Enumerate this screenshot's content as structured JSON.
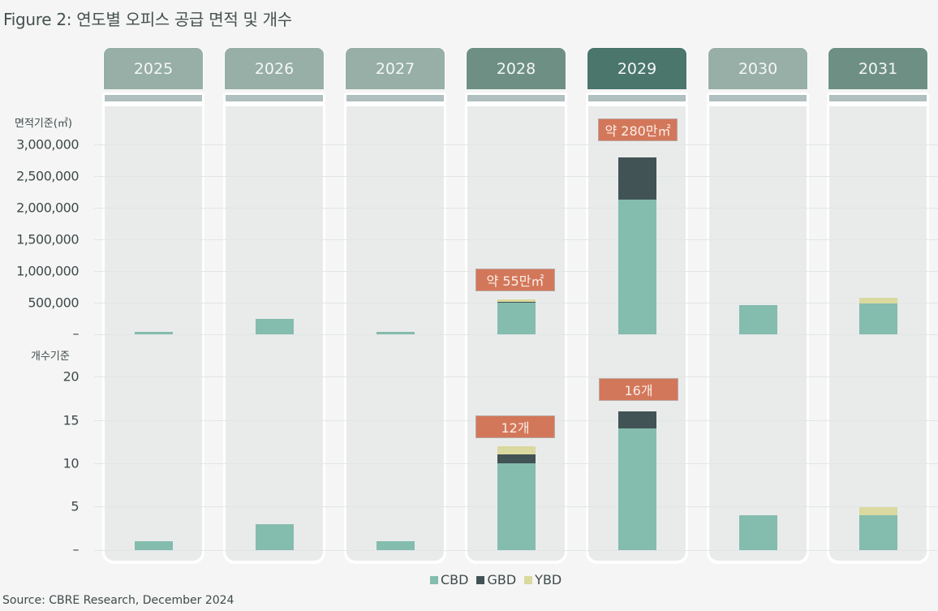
{
  "title": "Figure 2: 연도별 오피스 공급 면적 및 개수",
  "source": "Source: CBRE Research, December 2024",
  "colors": {
    "CBD": "#84bcae",
    "GBD": "#425355",
    "YBD": "#dad99f",
    "callout": "#d3775a",
    "header_light": "#97afa7",
    "header_mid": "#6e9084",
    "header_dark": "#4a766b",
    "panel": "#e9ebea"
  },
  "area_axis": {
    "label": "면적기준(㎡)",
    "ticks": [
      "3,000,000",
      "2,500,000",
      "2,000,000",
      "1,500,000",
      "1,000,000",
      "500,000",
      "–"
    ]
  },
  "count_axis": {
    "label": "개수기준",
    "ticks": [
      "20",
      "15",
      "10",
      "5",
      "–"
    ]
  },
  "years": [
    {
      "label": "2025",
      "header_color": "#97afa7"
    },
    {
      "label": "2026",
      "header_color": "#97afa7"
    },
    {
      "label": "2027",
      "header_color": "#97afa7"
    },
    {
      "label": "2028",
      "header_color": "#6e9084"
    },
    {
      "label": "2029",
      "header_color": "#4a766b"
    },
    {
      "label": "2030",
      "header_color": "#97afa7"
    },
    {
      "label": "2031",
      "header_color": "#6e9084"
    }
  ],
  "callouts": {
    "area_2028": "약 55만㎡",
    "area_2029": "약 280만㎡",
    "count_2028": "12개",
    "count_2029": "16개"
  },
  "legend": [
    {
      "label": "CBD",
      "color": "#84bcae"
    },
    {
      "label": "GBD",
      "color": "#425355"
    },
    {
      "label": "YBD",
      "color": "#dad99f"
    }
  ],
  "chart_data": [
    {
      "type": "bar",
      "stacked": true,
      "title": "연도별 오피스 공급 면적",
      "ylabel": "면적기준(㎡)",
      "categories": [
        "2025",
        "2026",
        "2027",
        "2028",
        "2029",
        "2030",
        "2031"
      ],
      "series": [
        {
          "name": "CBD",
          "values": [
            40000,
            245000,
            35000,
            500000,
            2130000,
            460000,
            490000
          ]
        },
        {
          "name": "GBD",
          "values": [
            0,
            0,
            0,
            15000,
            670000,
            0,
            0
          ]
        },
        {
          "name": "YBD",
          "values": [
            0,
            0,
            0,
            35000,
            0,
            0,
            90000
          ]
        }
      ],
      "ylim": [
        0,
        3000000
      ],
      "yticks": [
        0,
        500000,
        1000000,
        1500000,
        2000000,
        2500000,
        3000000
      ],
      "annotations": [
        {
          "category": "2028",
          "text": "약 55만㎡"
        },
        {
          "category": "2029",
          "text": "약 280만㎡"
        }
      ],
      "grid": true,
      "legend_position": "bottom"
    },
    {
      "type": "bar",
      "stacked": true,
      "title": "연도별 오피스 공급 개수",
      "ylabel": "개수기준",
      "categories": [
        "2025",
        "2026",
        "2027",
        "2028",
        "2029",
        "2030",
        "2031"
      ],
      "series": [
        {
          "name": "CBD",
          "values": [
            1,
            3,
            1,
            10,
            14,
            4,
            4
          ]
        },
        {
          "name": "GBD",
          "values": [
            0,
            0,
            0,
            1,
            2,
            0,
            0
          ]
        },
        {
          "name": "YBD",
          "values": [
            0,
            0,
            0,
            1,
            0,
            0,
            1
          ]
        }
      ],
      "ylim": [
        0,
        20
      ],
      "yticks": [
        0,
        5,
        10,
        15,
        20
      ],
      "annotations": [
        {
          "category": "2028",
          "text": "12개"
        },
        {
          "category": "2029",
          "text": "16개"
        }
      ],
      "grid": true,
      "legend_position": "bottom"
    }
  ]
}
